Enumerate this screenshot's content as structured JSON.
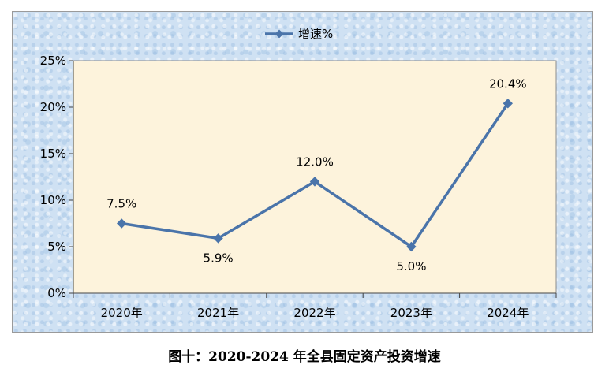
{
  "caption": "图十：2020-2024 年全县固定资产投资增速",
  "colors": {
    "line": "#4a74aa",
    "plot_background": "#fdf3dc",
    "frame_background": "#cfe1f3"
  },
  "chart_data": {
    "type": "line",
    "categories": [
      "2020年",
      "2021年",
      "2022年",
      "2023年",
      "2024年"
    ],
    "series": [
      {
        "name": "增速%",
        "values": [
          7.5,
          5.9,
          12.0,
          5.0,
          20.4
        ],
        "data_labels": [
          "7.5%",
          "5.9%",
          "12.0%",
          "5.0%",
          "20.4%"
        ]
      }
    ],
    "y_ticks": [
      0,
      5,
      10,
      15,
      20,
      25
    ],
    "y_tick_labels": [
      "0%",
      "5%",
      "10%",
      "15%",
      "20%",
      "25%"
    ],
    "ylim": [
      0,
      25
    ],
    "grid": false,
    "legend": "top-center",
    "marker": "diamond"
  }
}
